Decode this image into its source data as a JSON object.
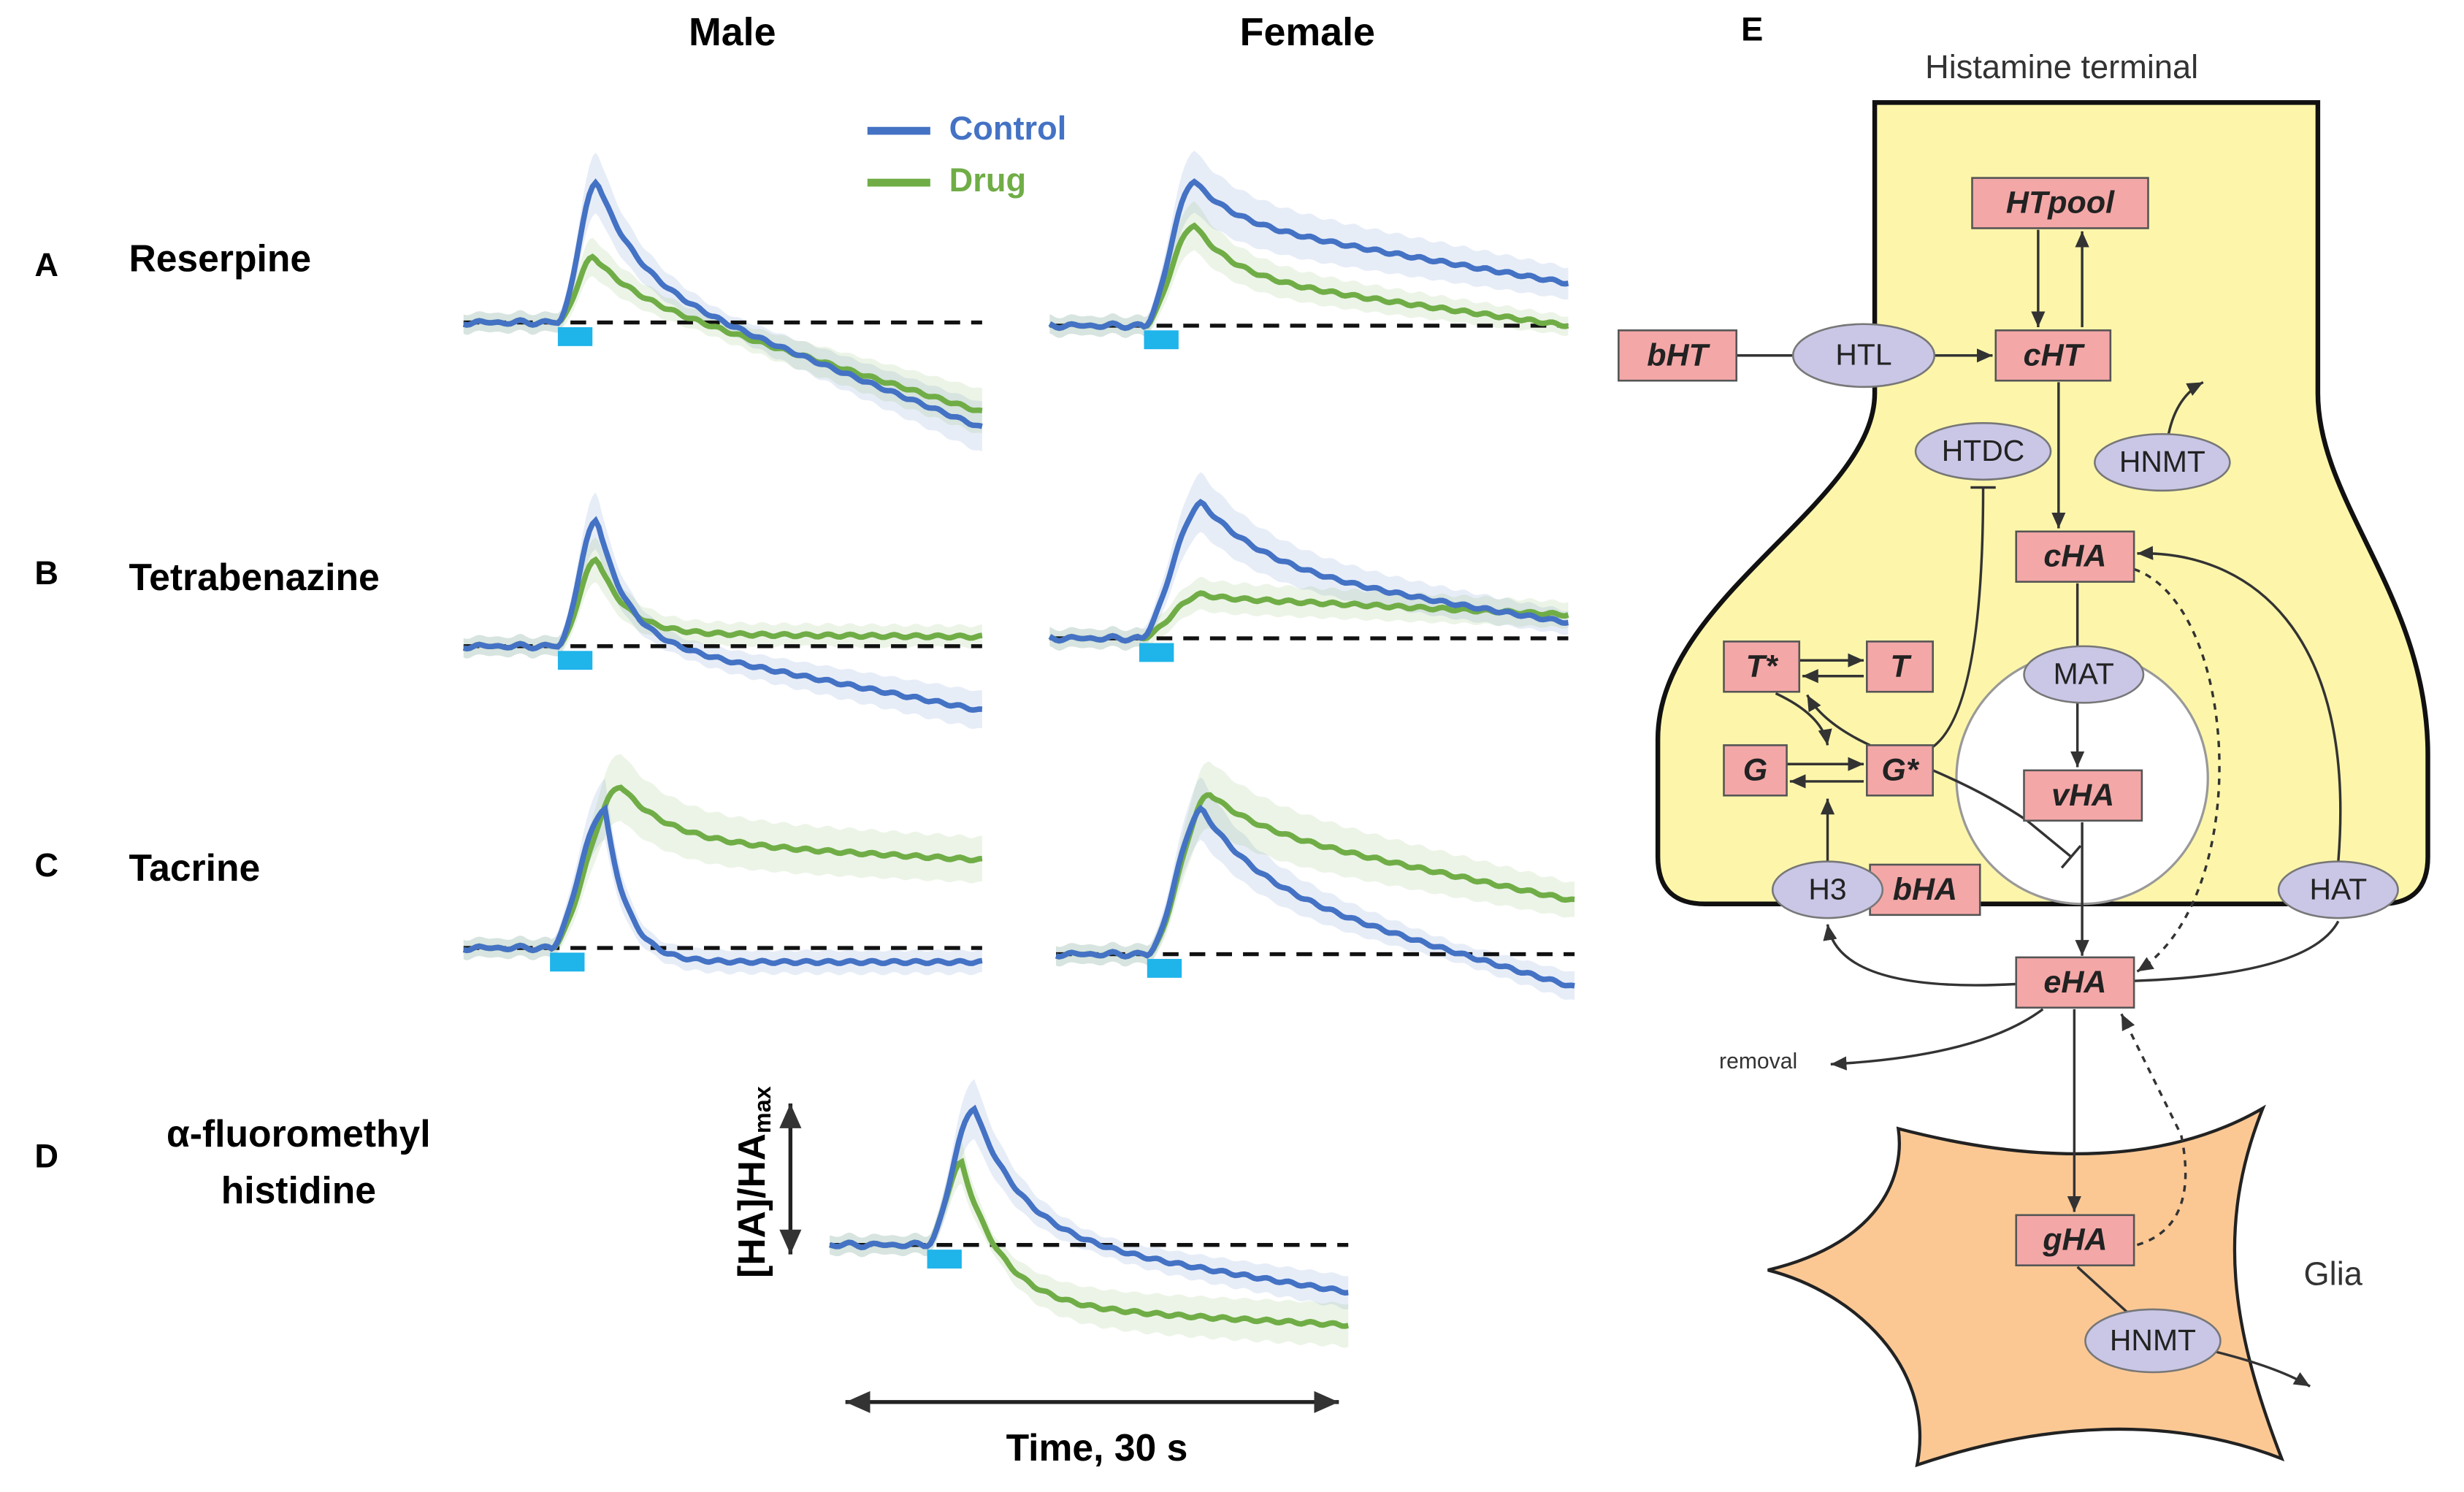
{
  "columns": [
    "Male",
    "Female"
  ],
  "legend": [
    {
      "name": "Control",
      "color": "#4472c4"
    },
    {
      "name": "Drug",
      "color": "#70ad47"
    }
  ],
  "rows": [
    {
      "letter": "A",
      "label": "Reserpine"
    },
    {
      "letter": "B",
      "label": "Tetrabenazine"
    },
    {
      "letter": "C",
      "label": "Tacrine"
    },
    {
      "letter": "D",
      "label": [
        "α-fluoromethyl",
        "histidine"
      ]
    }
  ],
  "y_label": "[HA]/HA",
  "y_label_sub": "max",
  "x_label": "Time, 30 s",
  "panel_e": {
    "letter": "E",
    "terminal": "Histamine terminal",
    "glia": "Glia",
    "removal": "removal",
    "species": [
      "bHT",
      "HTpool",
      "cHT",
      "cHA",
      "T*",
      "T",
      "G",
      "G*",
      "vHA",
      "bHA",
      "eHA",
      "gHA"
    ],
    "enzymes": [
      "HTL",
      "HTDC",
      "HNMT",
      "MAT",
      "H3",
      "HAT",
      "HNMT"
    ]
  }
}
